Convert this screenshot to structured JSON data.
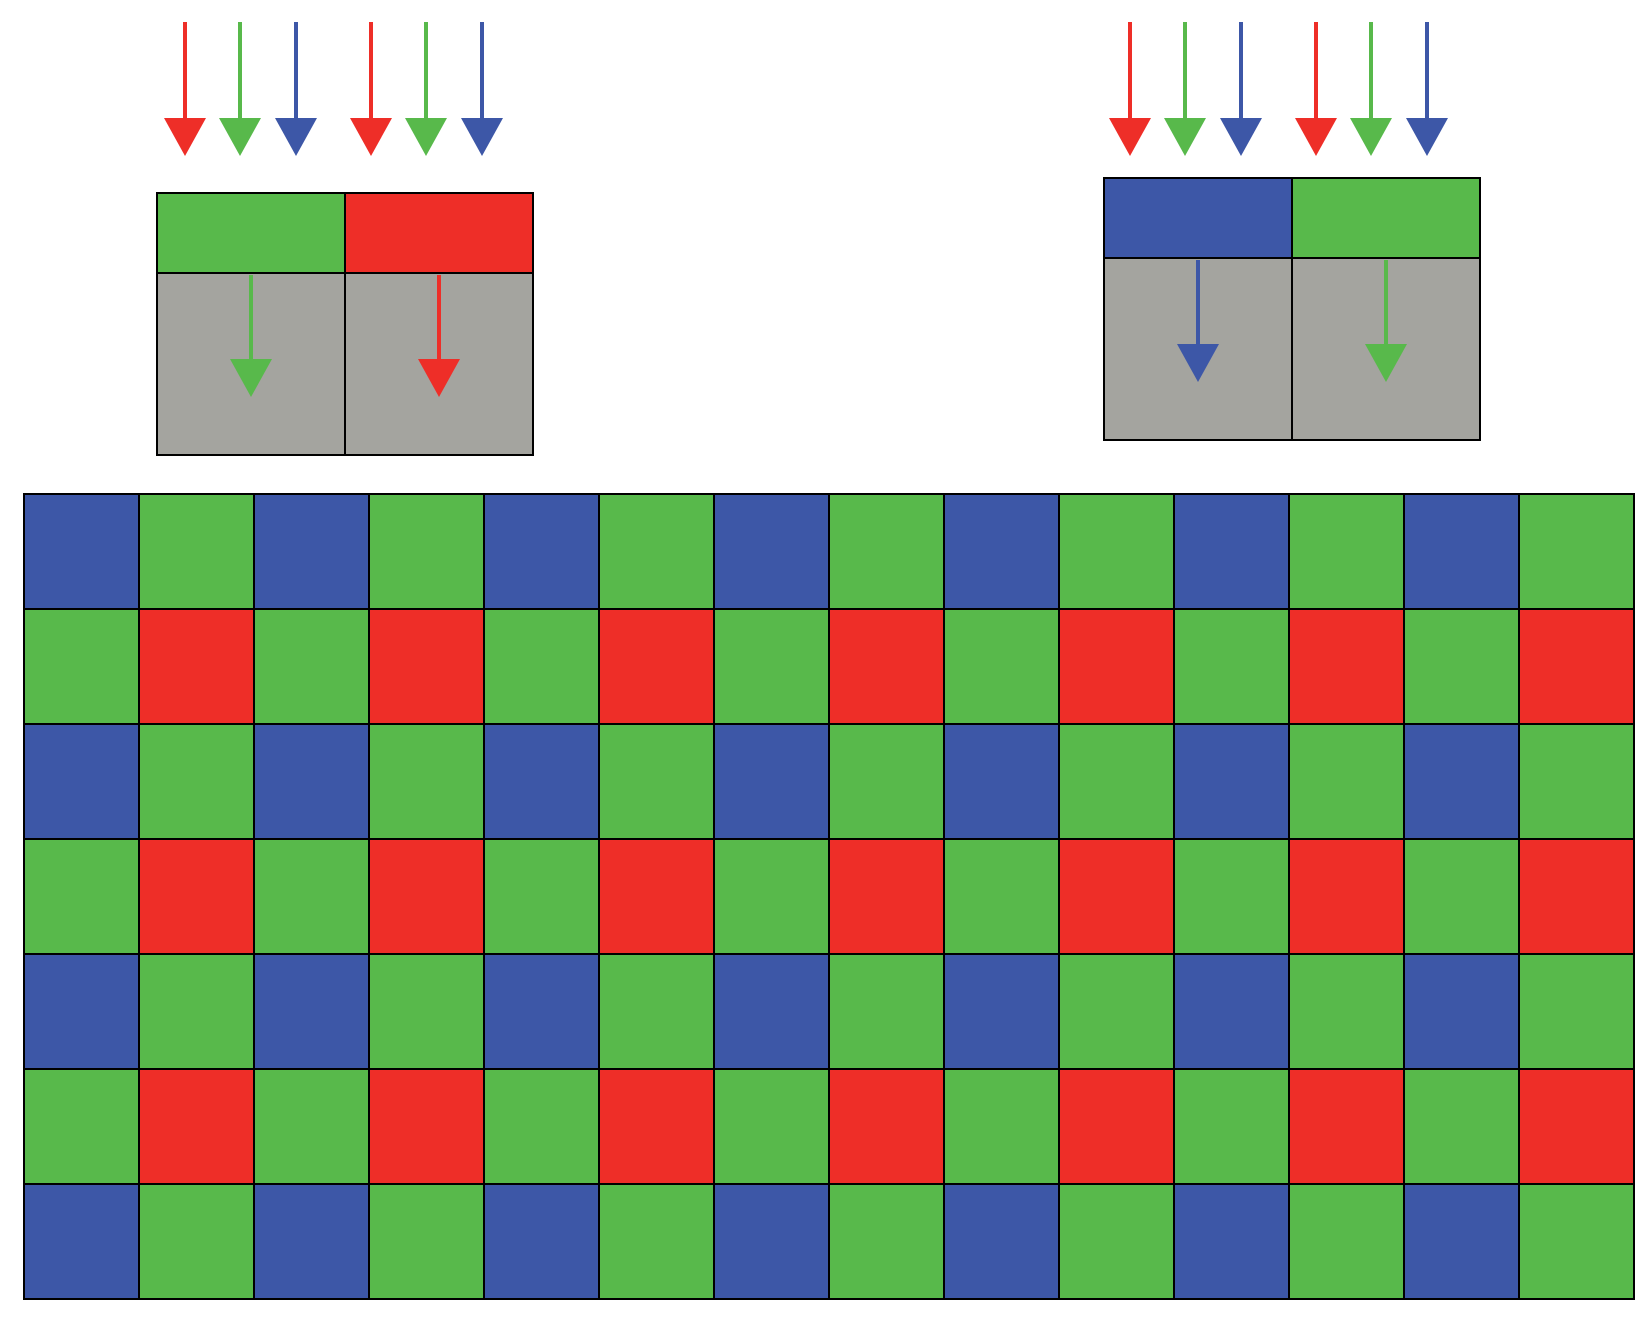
{
  "colors": {
    "red": "#EE2E28",
    "green": "#58B94B",
    "blue": "#3D57A7",
    "sensor_gray": "#A4A49F",
    "outline": "#000000",
    "background": "#FFFFFF"
  },
  "incident_light_sequence": [
    "red",
    "green",
    "blue",
    "red",
    "green",
    "blue"
  ],
  "sensor_pairs": [
    {
      "name": "green-red",
      "filters": [
        "green",
        "red"
      ],
      "transmitted": [
        "green",
        "red"
      ]
    },
    {
      "name": "blue-green",
      "filters": [
        "blue",
        "green"
      ],
      "transmitted": [
        "blue",
        "green"
      ]
    }
  ],
  "bayer_mosaic": {
    "rows": 7,
    "cols": 14,
    "pattern": [
      [
        "blue",
        "green"
      ],
      [
        "green",
        "red"
      ]
    ]
  },
  "icons": {
    "incident_arrow": "down-arrow-icon",
    "transmitted_arrow": "down-arrow-icon"
  }
}
